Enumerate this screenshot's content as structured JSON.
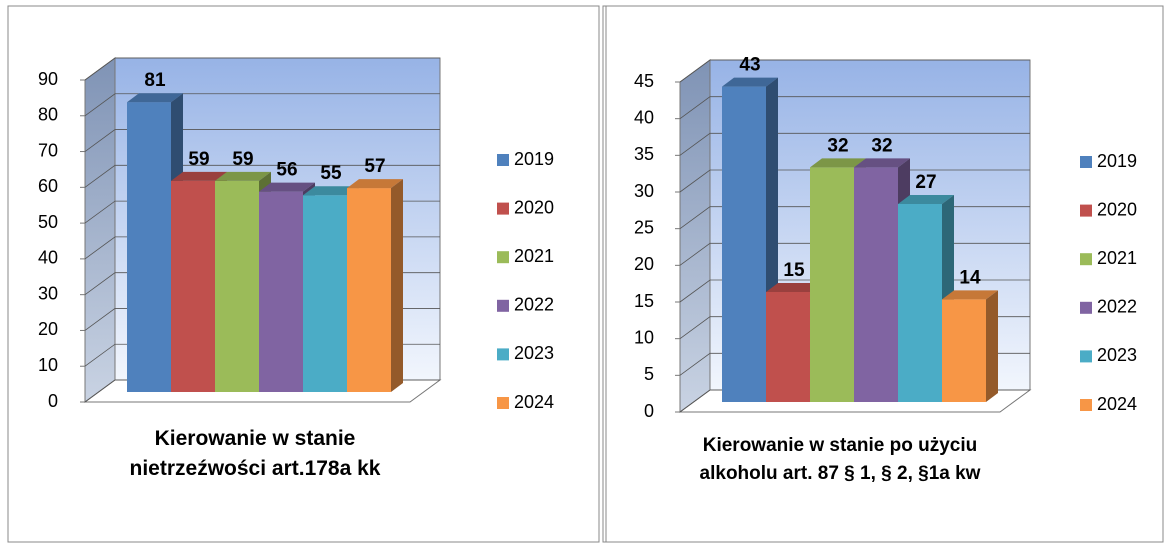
{
  "chart_data": [
    {
      "type": "bar",
      "title": "Kierowanie w stanie nietrzeźwości art.178a kk",
      "categories": [
        null
      ],
      "series": [
        {
          "name": "2019",
          "color": "#4f81bd",
          "values": [
            81
          ]
        },
        {
          "name": "2020",
          "color": "#c0504d",
          "values": [
            59
          ]
        },
        {
          "name": "2021",
          "color": "#9bbb59",
          "values": [
            59
          ]
        },
        {
          "name": "2022",
          "color": "#8064a2",
          "values": [
            56
          ]
        },
        {
          "name": "2023",
          "color": "#4bacc6",
          "values": [
            55
          ]
        },
        {
          "name": "2024",
          "color": "#f79646",
          "values": [
            57
          ]
        }
      ],
      "ylim": [
        0,
        90
      ],
      "yticks": [
        0,
        10,
        20,
        30,
        40,
        50,
        60,
        70,
        80,
        90
      ],
      "grid": true,
      "legend": "right"
    },
    {
      "type": "bar",
      "title": "Kierowanie w stanie po użyciu alkoholu art. 87 § 1, § 2, §1a kw",
      "categories": [
        null
      ],
      "series": [
        {
          "name": "2019",
          "color": "#4f81bd",
          "values": [
            43
          ]
        },
        {
          "name": "2020",
          "color": "#c0504d",
          "values": [
            15
          ]
        },
        {
          "name": "2021",
          "color": "#9bbb59",
          "values": [
            32
          ]
        },
        {
          "name": "2022",
          "color": "#8064a2",
          "values": [
            32
          ]
        },
        {
          "name": "2023",
          "color": "#4bacc6",
          "values": [
            27
          ]
        },
        {
          "name": "2024",
          "color": "#f79646",
          "values": [
            14
          ]
        }
      ],
      "ylim": [
        0,
        45
      ],
      "yticks": [
        0,
        5,
        10,
        15,
        20,
        25,
        30,
        35,
        40,
        45
      ],
      "grid": true,
      "legend": "right"
    }
  ]
}
